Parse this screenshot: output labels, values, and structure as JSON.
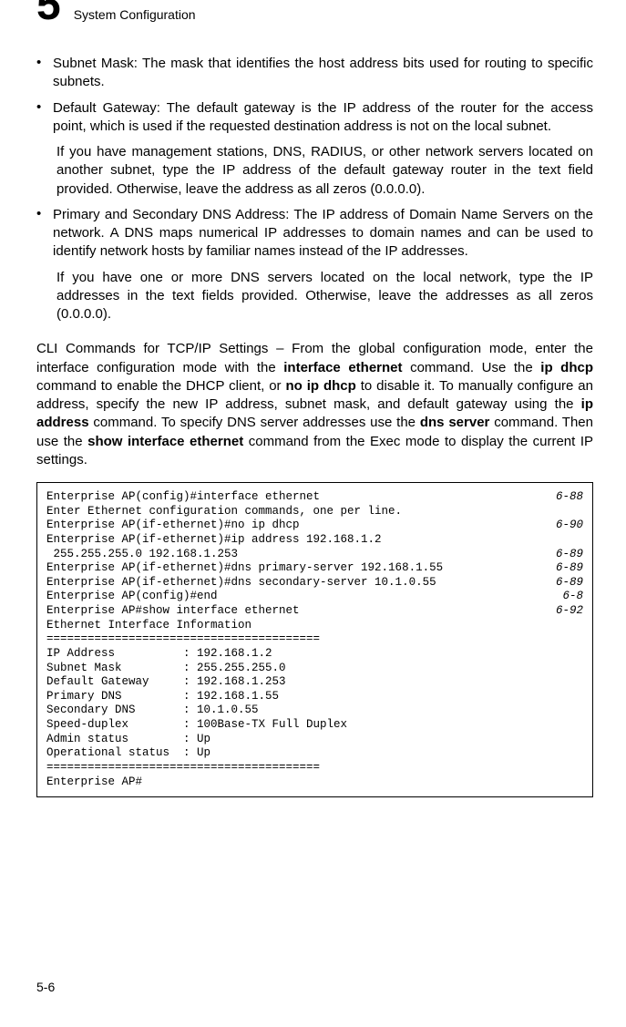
{
  "header": {
    "chapter_number": "5",
    "chapter_title": "System Configuration"
  },
  "bullets": [
    {
      "label": "Subnet Mask: The mask that identifies the host address bits used for routing to specific subnets."
    },
    {
      "label": "Default Gateway: The default gateway is the IP address of the router for the access point, which is used if the requested destination address is not on the local subnet.",
      "sub": "If you have management stations, DNS, RADIUS, or other network servers located on another subnet, type the IP address of the default gateway router in the text field provided. Otherwise, leave the address as all zeros (0.0.0.0)."
    },
    {
      "label": "Primary and Secondary DNS Address: The IP address of Domain Name Servers on the network. A DNS maps numerical IP addresses to domain names and can be used to identify network hosts by familiar names instead of the IP addresses.",
      "sub": "If you have one or more DNS servers located on the local network, type the IP addresses in the text fields provided. Otherwise, leave the addresses as all zeros (0.0.0.0)."
    }
  ],
  "para": {
    "p1": "CLI Commands for TCP/IP Settings – From the global configuration mode, enter the interface configuration mode with the ",
    "b1": "interface ethernet",
    "p2": " command. Use the ",
    "b2": "ip dhcp",
    "p3": " command to enable the DHCP client, or ",
    "b3": "no ip dhcp",
    "p4": " to disable it. To manually configure an address, specify the new IP address, subnet mask, and default gateway using the ",
    "b4": "ip address",
    "p5": " command. To specify DNS server addresses use the ",
    "b5": "dns server",
    "p6": " command. Then use the ",
    "b6": "show interface ethernet",
    "p7": " command from the Exec mode to display the current IP settings."
  },
  "cli": [
    {
      "l": "Enterprise AP(config)#interface ethernet",
      "r": "6-88"
    },
    {
      "l": "Enter Ethernet configuration commands, one per line.",
      "r": ""
    },
    {
      "l": "Enterprise AP(if-ethernet)#no ip dhcp",
      "r": "6-90"
    },
    {
      "l": "Enterprise AP(if-ethernet)#ip address 192.168.1.2",
      "r": ""
    },
    {
      "l": " 255.255.255.0 192.168.1.253",
      "r": "6-89"
    },
    {
      "l": "Enterprise AP(if-ethernet)#dns primary-server 192.168.1.55",
      "r": "6-89"
    },
    {
      "l": "Enterprise AP(if-ethernet)#dns secondary-server 10.1.0.55",
      "r": "6-89"
    },
    {
      "l": "Enterprise AP(config)#end",
      "r": "6-8"
    },
    {
      "l": "Enterprise AP#show interface ethernet",
      "r": "6-92"
    },
    {
      "l": "Ethernet Interface Information",
      "r": ""
    },
    {
      "l": "========================================",
      "r": ""
    },
    {
      "l": "IP Address          : 192.168.1.2",
      "r": ""
    },
    {
      "l": "Subnet Mask         : 255.255.255.0",
      "r": ""
    },
    {
      "l": "Default Gateway     : 192.168.1.253",
      "r": ""
    },
    {
      "l": "Primary DNS         : 192.168.1.55",
      "r": ""
    },
    {
      "l": "Secondary DNS       : 10.1.0.55",
      "r": ""
    },
    {
      "l": "Speed-duplex        : 100Base-TX Full Duplex",
      "r": ""
    },
    {
      "l": "Admin status        : Up",
      "r": ""
    },
    {
      "l": "Operational status  : Up",
      "r": ""
    },
    {
      "l": "========================================",
      "r": ""
    },
    {
      "l": "Enterprise AP#",
      "r": ""
    }
  ],
  "page_number": "5-6"
}
